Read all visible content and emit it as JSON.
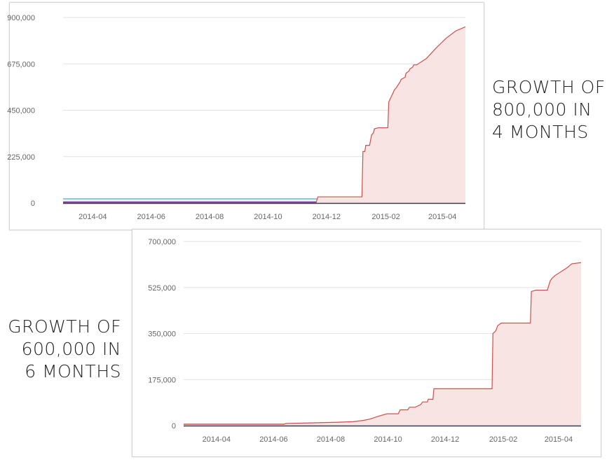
{
  "colors": {
    "primary_line": "#c9514b",
    "primary_fill": "#f8e4e3",
    "grid": "#e2e2e2",
    "axis": "#999999",
    "minor_series": [
      "#5bb8e0",
      "#2c3e66",
      "#9b59b6",
      "#3b6ea8",
      "#6aa84f",
      "#e6c84a"
    ]
  },
  "callouts": [
    {
      "lines": [
        "GROWTH OF",
        "800,000 IN",
        "4 MONTHS"
      ]
    },
    {
      "lines": [
        "GROWTH OF",
        "600,000 IN",
        "6 MONTHS"
      ]
    }
  ],
  "chart_data": [
    {
      "type": "area",
      "title": "",
      "xlabel": "",
      "ylabel": "",
      "x_ticks": [
        "2014-04",
        "2014-06",
        "2014-08",
        "2014-10",
        "2014-12",
        "2015-02",
        "2015-04"
      ],
      "y_ticks": [
        "900,000",
        "675,000",
        "450,000",
        "225,000",
        "0"
      ],
      "xlim": [
        "2014-03",
        "2015-04-25"
      ],
      "ylim": [
        0,
        900000
      ],
      "grid": true,
      "legend": "none",
      "series": [
        {
          "color": "#c9514b",
          "fill": true,
          "x": [
            "2014-03",
            "2014-11-20",
            "2014-11-22",
            "2015-01-07",
            "2015-01-08",
            "2015-01-10",
            "2015-01-11",
            "2015-01-15",
            "2015-01-17",
            "2015-01-19",
            "2015-01-20",
            "2015-01-24",
            "2015-01-25",
            "2015-02-03",
            "2015-02-04",
            "2015-02-06",
            "2015-02-10",
            "2015-02-12",
            "2015-02-16",
            "2015-02-17",
            "2015-02-21",
            "2015-02-22",
            "2015-02-25",
            "2015-02-26",
            "2015-03-01",
            "2015-03-02",
            "2015-03-05",
            "2015-03-15",
            "2015-03-25",
            "2015-04-05",
            "2015-04-15",
            "2015-04-25"
          ],
          "y": [
            0,
            0,
            30000,
            30000,
            250000,
            250000,
            280000,
            280000,
            330000,
            340000,
            360000,
            365000,
            365000,
            365000,
            490000,
            510000,
            550000,
            560000,
            590000,
            600000,
            610000,
            630000,
            640000,
            650000,
            660000,
            670000,
            670000,
            700000,
            750000,
            800000,
            835000,
            855000
          ]
        },
        {
          "color": "#5bb8e0",
          "fill": false,
          "x": [
            "2014-03",
            "2015-04-25"
          ],
          "y": [
            20000,
            20000
          ]
        },
        {
          "color": "#2c3e66",
          "fill": false,
          "x": [
            "2014-03",
            "2015-04-25"
          ],
          "y": [
            3000,
            3000
          ]
        },
        {
          "color": "#9b59b6",
          "fill": false,
          "x": [
            "2014-03",
            "2015-04-25"
          ],
          "y": [
            6000,
            6000
          ]
        }
      ]
    },
    {
      "type": "area",
      "title": "",
      "xlabel": "",
      "ylabel": "",
      "x_ticks": [
        "2014-04",
        "2014-06",
        "2014-08",
        "2014-10",
        "2014-12",
        "2015-02",
        "2015-04"
      ],
      "y_ticks": [
        "700,000",
        "525,000",
        "350,000",
        "175,000",
        "0"
      ],
      "xlim": [
        "2014-02-25",
        "2015-04-25"
      ],
      "ylim": [
        0,
        700000
      ],
      "grid": true,
      "legend": "none",
      "series": [
        {
          "color": "#c9514b",
          "fill": true,
          "x": [
            "2014-02-25",
            "2014-06-12",
            "2014-06-14",
            "2014-08-10",
            "2014-08-25",
            "2014-09-05",
            "2014-09-12",
            "2014-09-20",
            "2014-09-25",
            "2014-09-30",
            "2014-10-12",
            "2014-10-14",
            "2014-10-22",
            "2014-10-24",
            "2014-10-30",
            "2014-11-05",
            "2014-11-07",
            "2014-11-12",
            "2014-11-13",
            "2014-11-18",
            "2014-11-19",
            "2015-01-20",
            "2015-01-21",
            "2015-01-24",
            "2015-01-26",
            "2015-01-30",
            "2015-03-02",
            "2015-03-03",
            "2015-03-08",
            "2015-03-20",
            "2015-03-23",
            "2015-03-25",
            "2015-03-28",
            "2015-04-10",
            "2015-04-15",
            "2015-04-25"
          ],
          "y": [
            5000,
            5000,
            8000,
            13000,
            15000,
            20000,
            25000,
            35000,
            40000,
            45000,
            45000,
            60000,
            60000,
            70000,
            70000,
            80000,
            90000,
            90000,
            100000,
            100000,
            140000,
            140000,
            350000,
            360000,
            380000,
            390000,
            390000,
            510000,
            515000,
            515000,
            550000,
            560000,
            570000,
            600000,
            615000,
            620000
          ]
        },
        {
          "color": "#e6c84a",
          "fill": false,
          "x": [
            "2014-02-25",
            "2015-04-25"
          ],
          "y": [
            6000,
            6000
          ]
        },
        {
          "color": "#6aa84f",
          "fill": false,
          "x": [
            "2014-02-25",
            "2015-04-25"
          ],
          "y": [
            4000,
            4000
          ]
        },
        {
          "color": "#2c3e66",
          "fill": false,
          "x": [
            "2014-02-25",
            "2015-04-25"
          ],
          "y": [
            2000,
            2000
          ]
        }
      ]
    }
  ]
}
